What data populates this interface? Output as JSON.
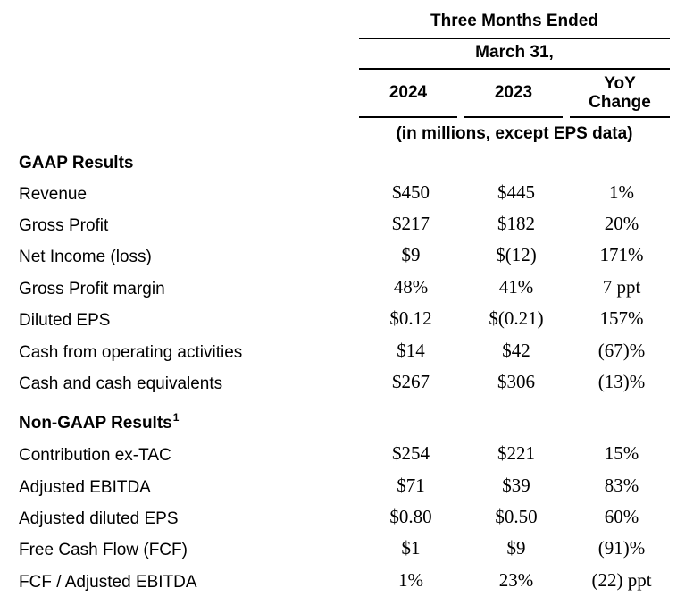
{
  "header": {
    "period_title": "Three Months Ended",
    "period_date": "March 31,",
    "col_2024": "2024",
    "col_2023": "2023",
    "col_yoy_line1": "YoY",
    "col_yoy_line2": "Change",
    "units_note": "(in millions, except EPS data)"
  },
  "gaap": {
    "title": "GAAP Results",
    "rows": [
      {
        "label": "Revenue",
        "v2024": "$450",
        "v2023": "$445",
        "yoy": "1%"
      },
      {
        "label": "Gross Profit",
        "v2024": "$217",
        "v2023": "$182",
        "yoy": "20%"
      },
      {
        "label": "Net Income (loss)",
        "v2024": "$9",
        "v2023": "$(12)",
        "yoy": "171%"
      },
      {
        "label": "Gross Profit margin",
        "v2024": "48%",
        "v2023": "41%",
        "yoy": "7 ppt"
      },
      {
        "label": "Diluted EPS",
        "v2024": "$0.12",
        "v2023": "$(0.21)",
        "yoy": "157%"
      },
      {
        "label": "Cash from operating activities",
        "v2024": "$14",
        "v2023": "$42",
        "yoy": "(67)%"
      },
      {
        "label": "Cash and cash equivalents",
        "v2024": "$267",
        "v2023": "$306",
        "yoy": "(13)%"
      }
    ]
  },
  "non_gaap": {
    "title": "Non-GAAP Results",
    "footnote_mark": "1",
    "rows": [
      {
        "label": "Contribution ex-TAC",
        "v2024": "$254",
        "v2023": "$221",
        "yoy": "15%"
      },
      {
        "label": "Adjusted EBITDA",
        "v2024": "$71",
        "v2023": "$39",
        "yoy": "83%"
      },
      {
        "label": "Adjusted diluted EPS",
        "v2024": "$0.80",
        "v2023": "$0.50",
        "yoy": "60%"
      },
      {
        "label": "Free Cash Flow (FCF)",
        "v2024": "$1",
        "v2023": "$9",
        "yoy": "(91)%"
      },
      {
        "label": "FCF / Adjusted EBITDA",
        "v2024": "1%",
        "v2023": "23%",
        "yoy": "(22) ppt"
      }
    ]
  }
}
